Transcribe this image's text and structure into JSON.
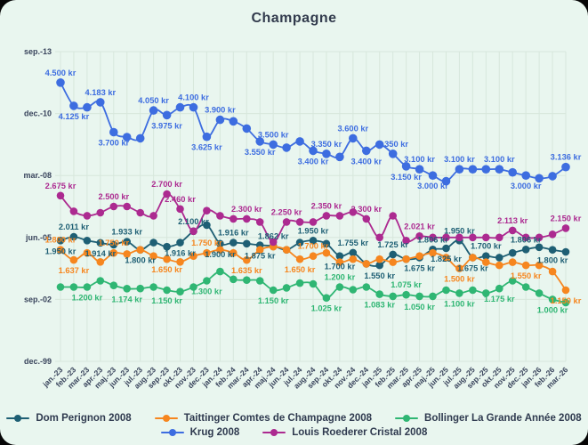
{
  "title": "Champagne",
  "colors": {
    "background": "#e9f6ef",
    "grid": "#d7e7dc",
    "axis_text": "#39445c",
    "title_text": "#323b4d",
    "dom_perignon": "#1e5f74",
    "taittinger": "#f6861f",
    "bollinger": "#2fb673",
    "krug": "#3d6de0",
    "cristal": "#ac2a90"
  },
  "chart_data": {
    "type": "line",
    "title": "Champagne",
    "unit": "kr",
    "grid": true,
    "legend_position": "bottom",
    "x": [
      "jan.-23",
      "feb.-23",
      "mar.-23",
      "apr.-23",
      "maj.-23",
      "jun.-23",
      "jul.-23",
      "aug.-23",
      "sep.-23",
      "okt.-23",
      "nov.-23",
      "dec.-23",
      "jan.-24",
      "feb.-24",
      "mar.-24",
      "apr.-24",
      "maj.-24",
      "jun.-24",
      "jul.-24",
      "aug.-24",
      "sep.-24",
      "okt.-24",
      "nov.-24",
      "dec.-24",
      "jan.-25",
      "feb.-25",
      "mar.-25",
      "apr.-25",
      "maj.-25",
      "jun.-25",
      "jul.-25",
      "aug.-25",
      "sep.-25",
      "okt.-25",
      "nov.-25",
      "dec.-25",
      "jan.-26",
      "feb.-26",
      "mar.-26"
    ],
    "y_axis": {
      "tick_labels": [
        "sep.-13",
        "dec.-10",
        "mar.-08",
        "jun.-05",
        "sep.-02",
        "dec.-99"
      ],
      "tick_values_kr": [
        5000,
        4000,
        3000,
        2000,
        1000,
        0
      ],
      "range_kr": [
        0,
        5000
      ]
    },
    "series": [
      {
        "name": "Dom Perignon 2008",
        "color": "#1e5f74",
        "values": [
          1950,
          2011,
          1950,
          1914,
          1883,
          1933,
          1800,
          1916,
          1850,
          1916,
          2100,
          2200,
          1900,
          1916,
          1900,
          1875,
          1862,
          1800,
          1916,
          1950,
          1900,
          1700,
          1755,
          1575,
          1550,
          1725,
          1650,
          1675,
          1806,
          1825,
          1950,
          1675,
          1700,
          1675,
          1750,
          1806,
          1842,
          1800,
          1767
        ]
      },
      {
        "name": "Taittinger Comtes de Champagne 2008",
        "color": "#f6861f",
        "values": [
          1800,
          1637,
          1750,
          1605,
          1750,
          1733,
          1800,
          1700,
          1650,
          1605,
          1700,
          1750,
          1800,
          1750,
          1635,
          1800,
          1850,
          1800,
          1650,
          1700,
          1750,
          1600,
          1650,
          1575,
          1650,
          1600,
          1650,
          1700,
          1750,
          1675,
          1500,
          1675,
          1600,
          1550,
          1600,
          1550,
          1550,
          1450,
          1150
        ]
      },
      {
        "name": "Bollinger La Grande Année 2008",
        "color": "#2fb673",
        "values": [
          1200,
          1200,
          1200,
          1300,
          1225,
          1174,
          1175,
          1200,
          1150,
          1125,
          1200,
          1300,
          1450,
          1324,
          1312,
          1300,
          1150,
          1187,
          1263,
          1250,
          1025,
          1200,
          1156,
          1200,
          1083,
          1050,
          1075,
          1050,
          1050,
          1150,
          1100,
          1150,
          1100,
          1175,
          1300,
          1200,
          1100,
          1000,
          950
        ]
      },
      {
        "name": "Krug 2008",
        "color": "#3d6de0",
        "values": [
          4500,
          4125,
          4100,
          4183,
          3700,
          3620,
          3600,
          4050,
          3975,
          4100,
          4100,
          3625,
          3900,
          3875,
          3758,
          3550,
          3500,
          3450,
          3550,
          3400,
          3350,
          3300,
          3600,
          3400,
          3500,
          3350,
          3150,
          3100,
          3000,
          2908,
          3100,
          3100,
          3100,
          3100,
          3050,
          3000,
          2955,
          2990,
          3136
        ]
      },
      {
        "name": "Louis Roederer Cristal 2008",
        "color": "#ac2a90",
        "values": [
          2675,
          2423,
          2350,
          2400,
          2500,
          2500,
          2400,
          2350,
          2700,
          2460,
          2100,
          2433,
          2350,
          2300,
          2300,
          2250,
          1925,
          2250,
          2250,
          2250,
          2350,
          2350,
          2410,
          2300,
          2000,
          2349,
          1950,
          2021,
          2000,
          2000,
          2000,
          2000,
          2000,
          2000,
          2113,
          2000,
          2000,
          2050,
          2150
        ]
      }
    ],
    "legend_rows": [
      [
        0,
        1,
        2
      ],
      [
        3,
        4
      ]
    ]
  }
}
